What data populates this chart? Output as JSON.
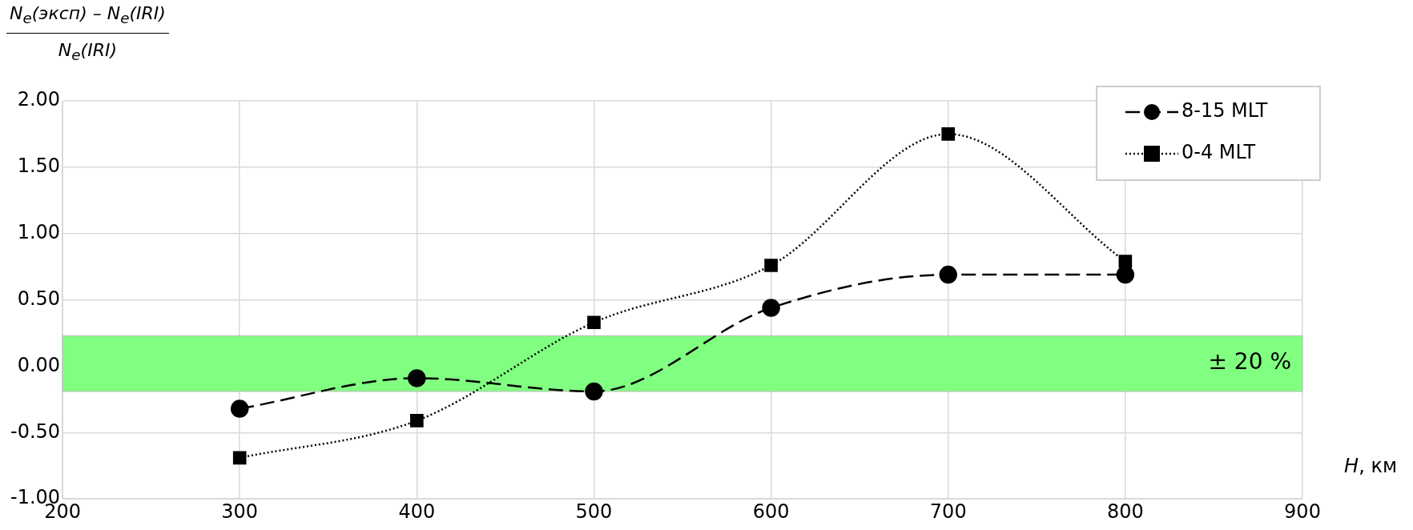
{
  "chart_data": {
    "type": "line",
    "xlabel": "H, км",
    "ylabel": "N$_{e}$(эксп) – N$_{e}$(IRI)\nN$_{e}$(IRI)",
    "x": [
      300,
      400,
      500,
      600,
      700,
      800
    ],
    "series": [
      {
        "name": "8-15 MLT",
        "color": "#000000",
        "marker": "circle",
        "line_style": "dashed",
        "values": [
          -0.32,
          -0.09,
          -0.19,
          0.44,
          0.69,
          0.69
        ]
      },
      {
        "name": "0-4 MLT",
        "color": "#000000",
        "marker": "square",
        "line_style": "dotted",
        "values": [
          -0.69,
          -0.41,
          0.33,
          0.76,
          1.75,
          0.79
        ]
      }
    ],
    "xlim": [
      200,
      900
    ],
    "xticks": [
      200,
      300,
      400,
      500,
      600,
      700,
      800,
      900
    ],
    "ylim": [
      -1,
      2
    ],
    "yticks": [
      {
        "value": -1,
        "label": "-1.00"
      },
      {
        "value": -0.5,
        "label": "-0.50"
      },
      {
        "value": 0,
        "label": "0.00"
      },
      {
        "value": 0.5,
        "label": "0.50"
      },
      {
        "value": 1,
        "label": "1.00"
      },
      {
        "value": 1.5,
        "label": "1.50"
      },
      {
        "value": 2,
        "label": "2.00"
      }
    ],
    "bands": [
      {
        "axis": "y",
        "from": -0.19,
        "to": 0.23,
        "label": "± 20 %",
        "color": "#80ff80"
      }
    ],
    "grid": true,
    "legend": "top right"
  }
}
